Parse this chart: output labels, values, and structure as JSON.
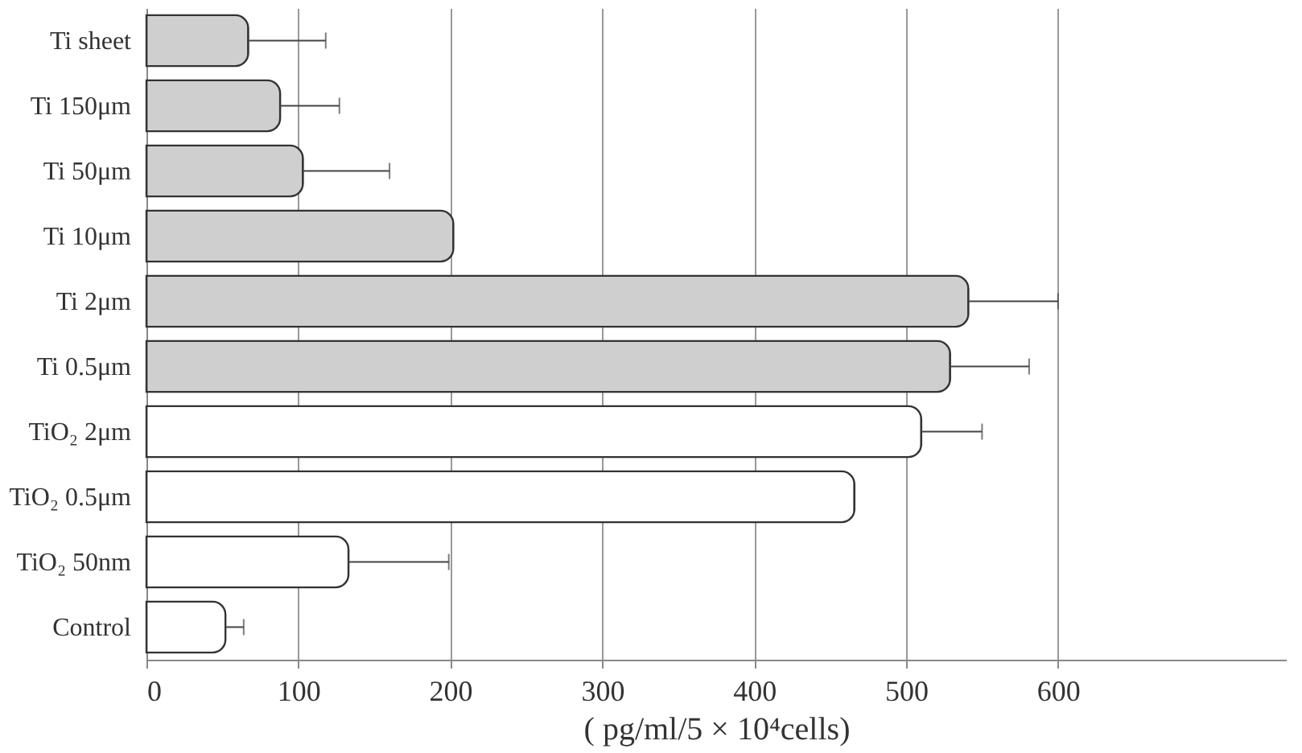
{
  "chart_data": {
    "type": "bar",
    "orientation": "horizontal",
    "xlabel": "( pg/ml/5 × 10⁴cells)",
    "categories": [
      "Ti sheet",
      "Ti 150μm",
      "Ti 50μm",
      "Ti 10μm",
      "Ti  2μm",
      "Ti 0.5μm",
      "TiO₂ 2μm",
      "TiO₂ 0.5μm",
      "TiO₂ 50nm",
      "Control"
    ],
    "values": [
      67,
      88,
      103,
      202,
      541,
      529,
      510,
      466,
      133,
      52
    ],
    "errors": [
      [
        67,
        118
      ],
      [
        88,
        127
      ],
      [
        103,
        160
      ],
      null,
      [
        541,
        600
      ],
      [
        529,
        581
      ],
      [
        510,
        550
      ],
      null,
      [
        133,
        199
      ],
      [
        52,
        64
      ]
    ],
    "colors": [
      "#cfcfcf",
      "#cfcfcf",
      "#cfcfcf",
      "#cfcfcf",
      "#cfcfcf",
      "#cfcfcf",
      "#ffffff",
      "#ffffff",
      "#ffffff",
      "#ffffff"
    ],
    "xlim": [
      0,
      750
    ],
    "xticks": [
      0,
      100,
      200,
      300,
      400,
      500,
      600
    ],
    "grid": "x"
  }
}
